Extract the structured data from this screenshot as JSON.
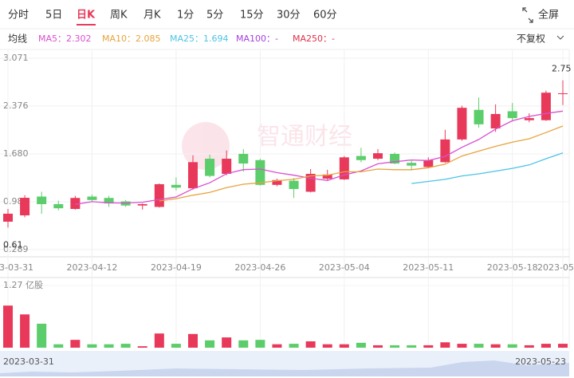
{
  "tabs": [
    "分时",
    "5日",
    "日K",
    "周K",
    "月K",
    "1分",
    "5分",
    "15分",
    "30分",
    "60分"
  ],
  "active_tab": 2,
  "fullscreen": "全屏",
  "ma_title": "均线",
  "adjust": "不复权",
  "watermark": "智通财经",
  "chart_data": {
    "type": "candlestick",
    "x": [
      "2023-03-31",
      null,
      null,
      null,
      null,
      "2023-04-12",
      null,
      null,
      null,
      null,
      "2023-04-19",
      null,
      null,
      null,
      null,
      "2023-04-26",
      null,
      null,
      null,
      null,
      "2023-05-04",
      null,
      null,
      null,
      null,
      "2023-05-11",
      null,
      null,
      null,
      null,
      "2023-05-18",
      null,
      null,
      "2023-05-23"
    ],
    "open": [
      0.695,
      0.787,
      1.06,
      0.95,
      0.88,
      1.06,
      1.04,
      0.99,
      0.93,
      0.91,
      1.23,
      1.18,
      1.61,
      1.39,
      1.68,
      1.59,
      1.23,
      1.29,
      1.13,
      1.32,
      1.31,
      1.65,
      1.61,
      1.68,
      1.55,
      1.49,
      1.56,
      1.89,
      2.32,
      2.05,
      2.3,
      2.17,
      2.17,
      2.55
    ],
    "high": [
      0.88,
      1.08,
      1.13,
      1.0,
      1.07,
      1.09,
      1.07,
      1.01,
      0.96,
      1.25,
      1.34,
      1.66,
      1.67,
      1.73,
      1.75,
      1.61,
      1.32,
      1.33,
      1.46,
      1.45,
      1.65,
      1.77,
      1.75,
      1.7,
      1.58,
      1.63,
      2.03,
      2.38,
      2.5,
      2.4,
      2.42,
      2.27,
      2.6,
      2.75
    ],
    "low": [
      0.61,
      0.76,
      0.81,
      0.86,
      0.87,
      0.98,
      0.91,
      0.91,
      0.87,
      0.9,
      1.15,
      1.16,
      1.34,
      1.37,
      1.42,
      1.22,
      1.21,
      1.04,
      1.12,
      1.3,
      1.3,
      1.56,
      1.59,
      1.53,
      1.44,
      1.47,
      1.55,
      1.87,
      2.06,
      2.0,
      2.15,
      2.14,
      2.16,
      2.39
    ],
    "close": [
      0.811,
      1.042,
      0.95,
      0.89,
      1.04,
      1.01,
      0.96,
      0.93,
      0.95,
      1.24,
      1.19,
      1.56,
      1.36,
      1.61,
      1.54,
      1.23,
      1.3,
      1.17,
      1.39,
      1.38,
      1.63,
      1.59,
      1.69,
      1.54,
      1.51,
      1.59,
      1.89,
      2.35,
      2.11,
      2.26,
      2.2,
      2.2,
      2.57,
      2.56
    ],
    "up_color": "#e8395a",
    "down_color": "#5ccd6b",
    "ylim": [
      0.185,
      3.198
    ],
    "yticks": [
      {
        "value": 3.071,
        "label": "3.071"
      },
      {
        "value": 2.376,
        "label": "2.376"
      },
      {
        "value": 1.68,
        "label": "1.680"
      },
      {
        "value": 0.985,
        "label": "0.985"
      },
      0.289
    ],
    "grid": true,
    "series": [
      {
        "name": "MA5：2.302",
        "color": "#d94fd0",
        "values": [
          null,
          null,
          null,
          null,
          0.947,
          0.986,
          0.97,
          0.966,
          0.978,
          1.018,
          1.054,
          1.174,
          1.26,
          1.392,
          1.452,
          1.46,
          1.408,
          1.37,
          1.326,
          1.294,
          1.374,
          1.432,
          1.536,
          1.566,
          1.592,
          1.584,
          1.644,
          1.776,
          1.89,
          2.04,
          2.162,
          2.224,
          2.268,
          2.302
        ]
      },
      {
        "name": "MA10：2.085",
        "color": "#e8a33d",
        "values": [
          null,
          null,
          null,
          null,
          null,
          null,
          null,
          null,
          null,
          0.996,
          1.03,
          1.08,
          1.12,
          1.19,
          1.24,
          1.26,
          1.29,
          1.31,
          1.36,
          1.37,
          1.42,
          1.42,
          1.46,
          1.45,
          1.45,
          1.48,
          1.53,
          1.65,
          1.72,
          1.79,
          1.85,
          1.9,
          1.99,
          2.085
        ]
      },
      {
        "name": "MA25：1.694",
        "color": "#4cc3e6",
        "values": [
          null,
          null,
          null,
          null,
          null,
          null,
          null,
          null,
          null,
          null,
          null,
          null,
          null,
          null,
          null,
          null,
          null,
          null,
          null,
          null,
          null,
          null,
          null,
          null,
          1.25,
          1.28,
          1.31,
          1.36,
          1.39,
          1.43,
          1.47,
          1.52,
          1.61,
          1.694
        ]
      }
    ],
    "extra_legend": [
      {
        "name": "MA100：-",
        "color": "#a640e0"
      },
      {
        "name": "MA250：-",
        "color": "#e0304a"
      }
    ],
    "volume": {
      "values": [
        0.86,
        0.68,
        0.49,
        0.07,
        0.16,
        0.07,
        0.07,
        0.08,
        0.03,
        0.29,
        0.08,
        0.28,
        0.15,
        0.21,
        0.15,
        0.16,
        0.07,
        0.08,
        0.13,
        0.07,
        0.07,
        0.1,
        0.05,
        0.05,
        0.05,
        0.05,
        0.11,
        0.08,
        0.08,
        0.07,
        0.07,
        0.05,
        0.08,
        0.08
      ],
      "ylim": [
        0,
        1.27
      ],
      "yticks": [
        {
          "value": 1.27,
          "label": "1.27 亿股"
        }
      ]
    },
    "navigator": {
      "start": "2023-03-31",
      "end": "2023-05-23"
    }
  }
}
